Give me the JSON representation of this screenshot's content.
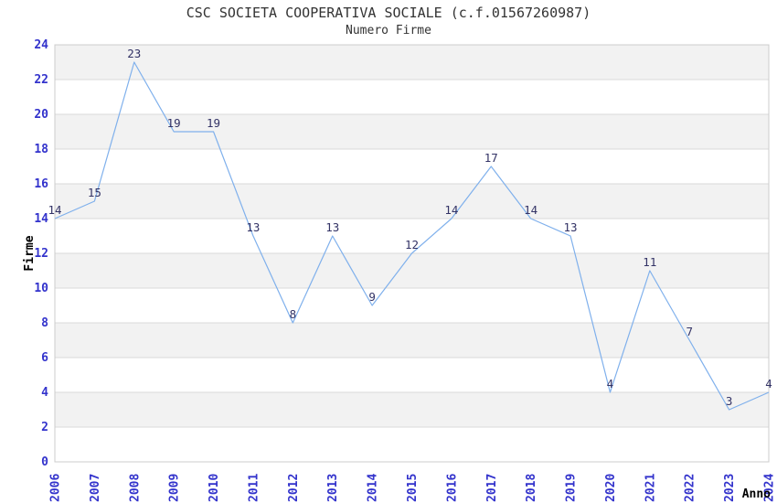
{
  "chart_data": {
    "type": "line",
    "title": "CSC SOCIETA COOPERATIVA SOCIALE (c.f.01567260987)",
    "subtitle": "Numero Firme",
    "xlabel": "Anno",
    "ylabel": "Firme",
    "categories": [
      "2006",
      "2007",
      "2008",
      "2009",
      "2010",
      "2011",
      "2012",
      "2013",
      "2014",
      "2015",
      "2016",
      "2017",
      "2018",
      "2019",
      "2020",
      "2021",
      "2022",
      "2023",
      "2024"
    ],
    "series": [
      {
        "name": "Numero Firme",
        "values": [
          14,
          15,
          23,
          19,
          19,
          13,
          8,
          13,
          9,
          12,
          14,
          17,
          14,
          13,
          4,
          11,
          7,
          3,
          4
        ]
      }
    ],
    "ylim": [
      0,
      24
    ],
    "ytick_step": 2,
    "grid": "horizontal-alternating-bands",
    "legend": "none",
    "point_labels": true,
    "style": {
      "line_color": "#7fb0ec",
      "point_label_color": "#333366",
      "tick_label_color": "#3333cc",
      "axis_title_color": "#000000",
      "title_color": "#333333",
      "band_color": "#f2f2f2",
      "gridline_color": "#d9d9d9",
      "border_color": "#cccccc",
      "background_color": "#ffffff"
    }
  }
}
